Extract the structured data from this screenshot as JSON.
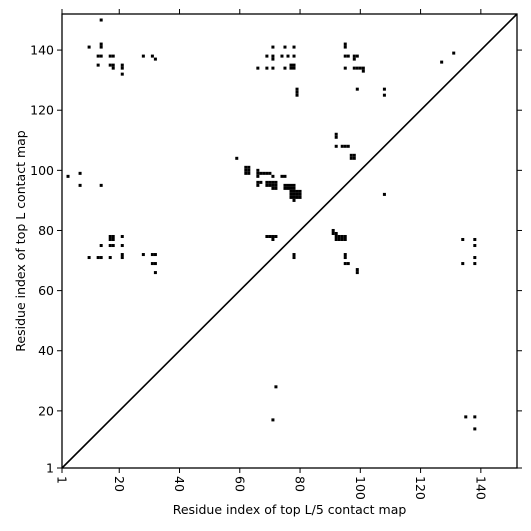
{
  "chart_data": {
    "type": "scatter",
    "title": "",
    "xlabel": "Residue index of top L/5 contact map",
    "ylabel": "Residue index of top L contact map",
    "xlim": [
      1,
      152
    ],
    "ylim": [
      1,
      152
    ],
    "xticks": [
      1,
      20,
      40,
      60,
      80,
      100,
      120,
      140
    ],
    "yticks": [
      1,
      20,
      40,
      60,
      80,
      100,
      120,
      140
    ],
    "xtick_rotation": -90,
    "grid": false,
    "diagonal": true,
    "marker_color": "#000000",
    "series": [
      {
        "name": "",
        "points": [
          [
            14,
            150
          ],
          [
            10,
            141
          ],
          [
            14,
            141
          ],
          [
            14,
            142
          ],
          [
            32,
            137
          ],
          [
            13,
            138
          ],
          [
            14,
            138
          ],
          [
            17,
            138
          ],
          [
            18,
            138
          ],
          [
            28,
            138
          ],
          [
            31,
            138
          ],
          [
            13,
            135
          ],
          [
            17,
            135
          ],
          [
            18,
            135
          ],
          [
            18,
            134
          ],
          [
            21,
            135
          ],
          [
            21,
            134
          ],
          [
            21,
            132
          ],
          [
            69,
            138
          ],
          [
            71,
            138
          ],
          [
            74,
            138
          ],
          [
            76,
            138
          ],
          [
            78,
            138
          ],
          [
            71,
            141
          ],
          [
            75,
            141
          ],
          [
            78,
            141
          ],
          [
            71,
            137
          ],
          [
            66,
            134
          ],
          [
            69,
            134
          ],
          [
            71,
            134
          ],
          [
            75,
            134
          ],
          [
            77,
            134
          ],
          [
            77,
            135
          ],
          [
            78,
            134
          ],
          [
            78,
            135
          ],
          [
            95,
            142
          ],
          [
            95,
            141
          ],
          [
            95,
            138
          ],
          [
            96,
            138
          ],
          [
            98,
            138
          ],
          [
            99,
            138
          ],
          [
            98,
            137
          ],
          [
            95,
            134
          ],
          [
            98,
            134
          ],
          [
            99,
            134
          ],
          [
            100,
            134
          ],
          [
            101,
            134
          ],
          [
            101,
            133
          ],
          [
            79,
            127
          ],
          [
            79,
            126
          ],
          [
            79,
            125
          ],
          [
            99,
            127
          ],
          [
            108,
            127
          ],
          [
            108,
            125
          ],
          [
            127,
            136
          ],
          [
            131,
            139
          ],
          [
            92,
            112
          ],
          [
            92,
            111
          ],
          [
            92,
            108
          ],
          [
            94,
            108
          ],
          [
            95,
            108
          ],
          [
            96,
            108
          ],
          [
            97,
            105
          ],
          [
            98,
            105
          ],
          [
            97,
            104
          ],
          [
            98,
            104
          ],
          [
            59,
            104
          ],
          [
            62,
            101
          ],
          [
            63,
            101
          ],
          [
            62,
            100
          ],
          [
            63,
            100
          ],
          [
            62,
            99
          ],
          [
            63,
            99
          ],
          [
            66,
            100
          ],
          [
            66,
            99
          ],
          [
            67,
            99
          ],
          [
            68,
            99
          ],
          [
            66,
            98
          ],
          [
            69,
            99
          ],
          [
            70,
            99
          ],
          [
            71,
            98
          ],
          [
            74,
            98
          ],
          [
            75,
            98
          ],
          [
            66,
            96
          ],
          [
            66,
            95
          ],
          [
            67,
            96
          ],
          [
            69,
            96
          ],
          [
            70,
            96
          ],
          [
            69,
            95
          ],
          [
            70,
            95
          ],
          [
            71,
            96
          ],
          [
            72,
            96
          ],
          [
            71,
            95
          ],
          [
            72,
            95
          ],
          [
            71,
            94
          ],
          [
            72,
            94
          ],
          [
            75,
            95
          ],
          [
            76,
            95
          ],
          [
            77,
            95
          ],
          [
            78,
            95
          ],
          [
            75,
            94
          ],
          [
            76,
            94
          ],
          [
            77,
            94
          ],
          [
            78,
            94
          ],
          [
            77,
            93
          ],
          [
            78,
            93
          ],
          [
            79,
            93
          ],
          [
            80,
            93
          ],
          [
            77,
            92
          ],
          [
            78,
            92
          ],
          [
            79,
            92
          ],
          [
            80,
            92
          ],
          [
            77,
            91
          ],
          [
            78,
            91
          ],
          [
            79,
            91
          ],
          [
            80,
            91
          ],
          [
            78,
            90
          ],
          [
            108,
            92
          ],
          [
            3,
            98
          ],
          [
            7,
            99
          ],
          [
            7,
            95
          ],
          [
            14,
            95
          ],
          [
            17,
            78
          ],
          [
            18,
            78
          ],
          [
            17,
            77
          ],
          [
            18,
            77
          ],
          [
            21,
            78
          ],
          [
            14,
            75
          ],
          [
            17,
            75
          ],
          [
            18,
            75
          ],
          [
            21,
            75
          ],
          [
            10,
            71
          ],
          [
            13,
            71
          ],
          [
            14,
            71
          ],
          [
            17,
            71
          ],
          [
            21,
            72
          ],
          [
            21,
            71
          ],
          [
            28,
            72
          ],
          [
            31,
            72
          ],
          [
            32,
            72
          ],
          [
            31,
            69
          ],
          [
            32,
            69
          ],
          [
            32,
            66
          ],
          [
            69,
            78
          ],
          [
            70,
            78
          ],
          [
            71,
            78
          ],
          [
            72,
            78
          ],
          [
            71,
            77
          ],
          [
            78,
            72
          ],
          [
            78,
            71
          ],
          [
            91,
            80
          ],
          [
            91,
            79
          ],
          [
            92,
            79
          ],
          [
            92,
            78
          ],
          [
            93,
            78
          ],
          [
            94,
            78
          ],
          [
            95,
            78
          ],
          [
            92,
            77
          ],
          [
            93,
            77
          ],
          [
            94,
            77
          ],
          [
            95,
            77
          ],
          [
            95,
            72
          ],
          [
            95,
            71
          ],
          [
            95,
            69
          ],
          [
            96,
            69
          ],
          [
            99,
            67
          ],
          [
            99,
            66
          ],
          [
            134,
            77
          ],
          [
            138,
            77
          ],
          [
            138,
            75
          ],
          [
            134,
            69
          ],
          [
            138,
            71
          ],
          [
            138,
            69
          ],
          [
            72,
            28
          ],
          [
            71,
            17
          ],
          [
            135,
            18
          ],
          [
            138,
            18
          ],
          [
            138,
            14
          ]
        ]
      }
    ]
  }
}
